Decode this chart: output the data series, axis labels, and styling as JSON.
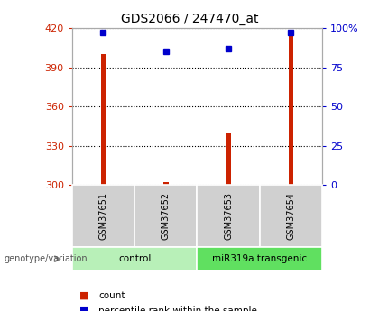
{
  "title": "GDS2066 / 247470_at",
  "samples": [
    "GSM37651",
    "GSM37652",
    "GSM37653",
    "GSM37654"
  ],
  "counts": [
    400,
    302,
    340,
    415
  ],
  "percentile_ranks": [
    97,
    85,
    87,
    97
  ],
  "ylim_left": [
    300,
    420
  ],
  "ylim_right": [
    0,
    100
  ],
  "yticks_left": [
    300,
    330,
    360,
    390,
    420
  ],
  "yticks_right": [
    0,
    25,
    50,
    75,
    100
  ],
  "groups": [
    {
      "label": "control",
      "color": "#b8f0b8",
      "start": 0,
      "end": 2
    },
    {
      "label": "miR319a transgenic",
      "color": "#60e060",
      "start": 2,
      "end": 4
    }
  ],
  "bar_color": "#cc2200",
  "marker_color": "#0000cc",
  "left_label_color": "#cc2200",
  "right_label_color": "#0000cc",
  "genotype_label": "genotype/variation",
  "legend_count_label": "count",
  "legend_percentile_label": "percentile rank within the sample",
  "bar_width": 0.08,
  "background_color": "#ffffff",
  "plot_bg_color": "#ffffff",
  "grid_color": "#000000",
  "tick_bg_color": "#d0d0d0",
  "marker_size": 5
}
